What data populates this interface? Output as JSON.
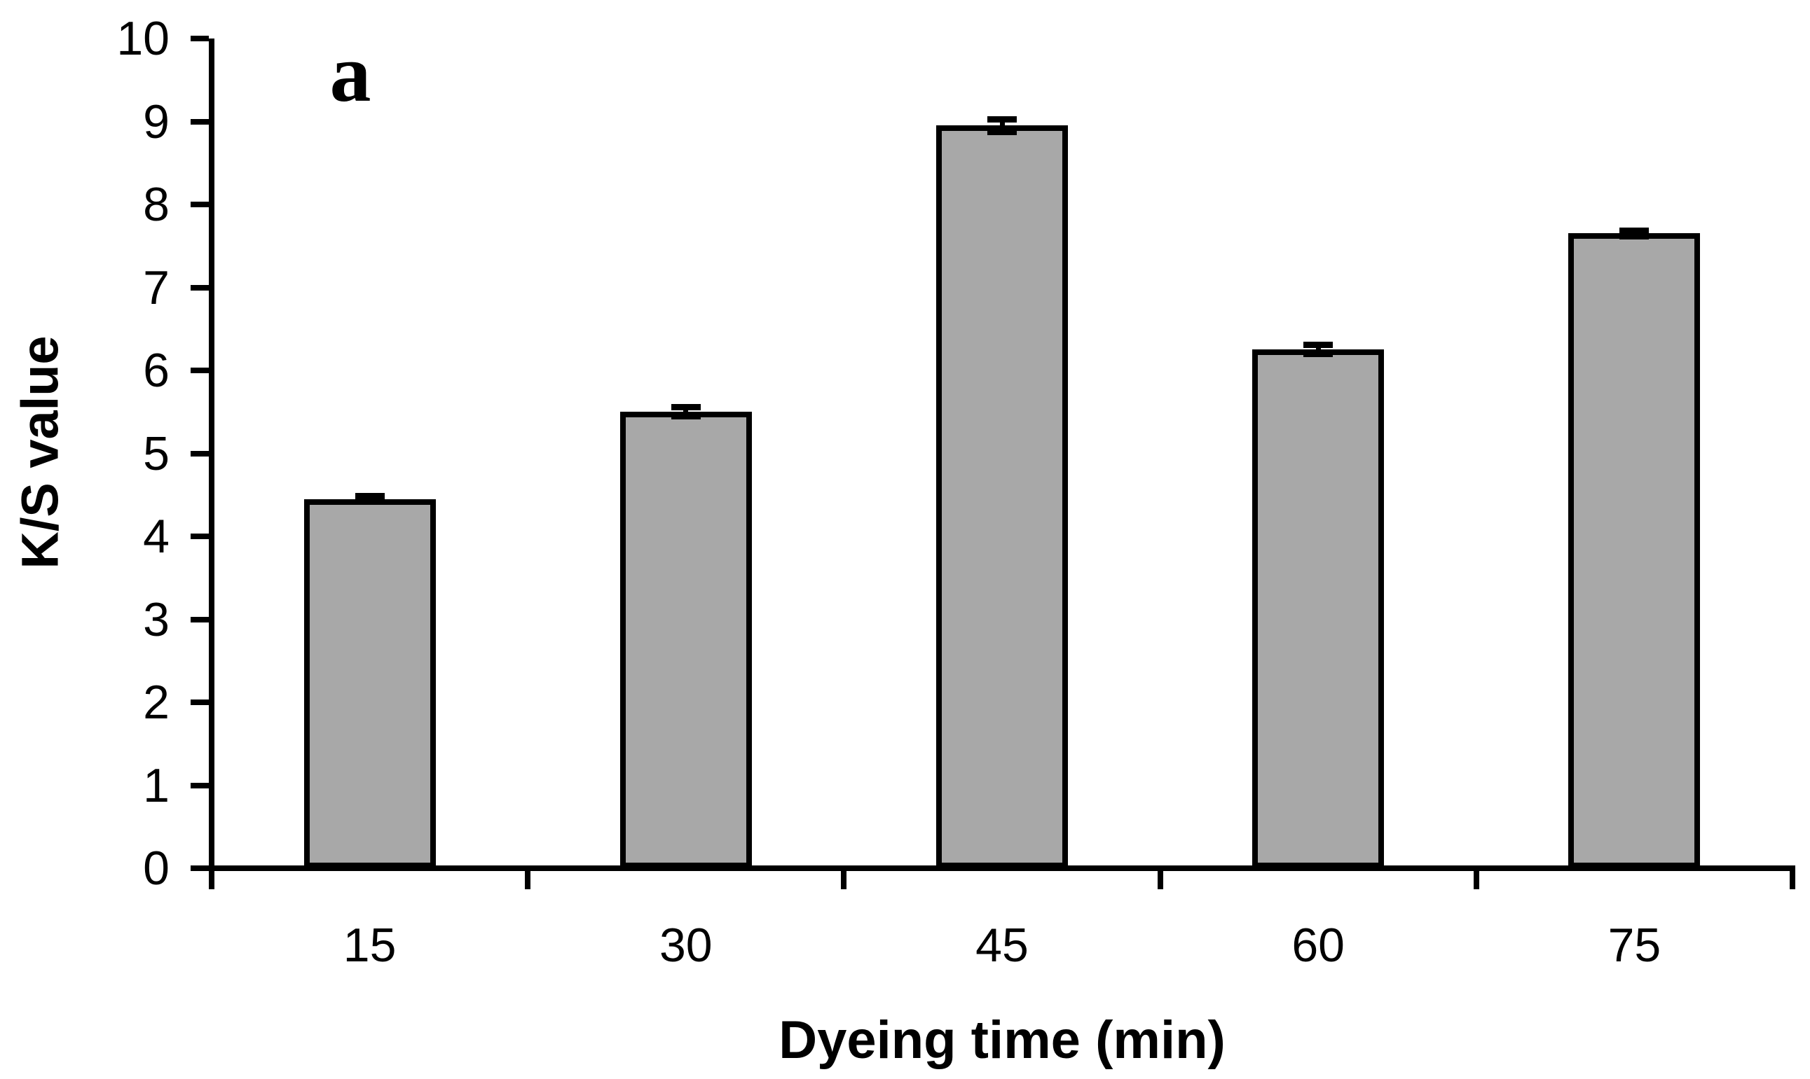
{
  "figure": {
    "panel_label": "a",
    "background_color": "#ffffff",
    "text_color": "#000000"
  },
  "chart_data": {
    "type": "bar",
    "title": "",
    "xlabel": "Dyeing time (min)",
    "ylabel": "K/S value",
    "categories": [
      "15",
      "30",
      "45",
      "60",
      "75"
    ],
    "values": [
      4.45,
      5.5,
      8.95,
      6.25,
      7.65
    ],
    "errors": [
      0.04,
      0.06,
      0.08,
      0.06,
      0.04
    ],
    "ylim": [
      0,
      10
    ],
    "yticks": [
      0,
      1,
      2,
      3,
      4,
      5,
      6,
      7,
      8,
      9,
      10
    ],
    "bar_color": "#a8a8a8",
    "bar_border_color": "#000000",
    "axis_color": "#000000",
    "grid": false,
    "legend": "none",
    "bar_width_pct": 8.33
  }
}
